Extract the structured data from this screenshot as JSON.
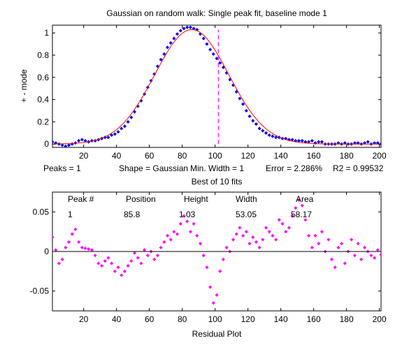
{
  "figure": {
    "title": "Gaussian on random walk: Single peak fit, baseline mode 1",
    "info_line": {
      "peaks": "Peaks = 1",
      "shape": "Shape = Gaussian",
      "min_width": "Min. Width = 1",
      "error": "Error = 2.286%",
      "r2": "R2 = 0.99532"
    },
    "best_of": "Best of 10 fits",
    "fit_table": {
      "headers": [
        "Peak #",
        "Position",
        "Height",
        "Width",
        "Area"
      ],
      "row": [
        "1",
        "85.8",
        "1.03",
        "53.05",
        "58.17"
      ]
    }
  },
  "chart_data": [
    {
      "type": "scatter",
      "title": "Gaussian on random walk: Single peak fit, baseline mode 1",
      "ylabel": "+ - mode",
      "xlabel": "",
      "xlim": [
        1,
        201
      ],
      "ylim": [
        -0.03,
        1.07
      ],
      "xticks": [
        20,
        40,
        60,
        80,
        100,
        120,
        140,
        160,
        180,
        200
      ],
      "yticks": [
        0,
        0.2,
        0.4,
        0.6,
        0.8,
        1
      ],
      "ytick_labels": [
        "0",
        "0.2",
        "0.4",
        "0.6",
        "0.8",
        "1"
      ],
      "grid": false,
      "series": [
        {
          "kind": "scatter",
          "color": "#0000ff",
          "x": [
            1,
            3,
            5,
            7,
            9,
            11,
            13,
            15,
            17,
            19,
            21,
            23,
            25,
            27,
            29,
            31,
            33,
            35,
            37,
            39,
            41,
            43,
            45,
            47,
            49,
            51,
            53,
            55,
            57,
            59,
            61,
            63,
            65,
            67,
            69,
            71,
            73,
            75,
            77,
            79,
            81,
            83,
            85,
            87,
            89,
            91,
            93,
            95,
            97,
            99,
            101,
            103,
            105,
            107,
            109,
            111,
            113,
            115,
            117,
            119,
            121,
            123,
            125,
            127,
            129,
            131,
            133,
            135,
            137,
            139,
            141,
            143,
            145,
            147,
            149,
            151,
            153,
            155,
            157,
            159,
            161,
            163,
            165,
            167,
            169,
            171,
            173,
            175,
            177,
            179,
            181,
            183,
            185,
            187,
            189,
            191,
            193,
            195,
            197,
            199,
            201
          ],
          "y": [
            0.02,
            0.01,
            0.0,
            -0.01,
            -0.02,
            -0.01,
            0.0,
            0.01,
            0.03,
            0.04,
            0.03,
            0.02,
            0.03,
            0.03,
            0.04,
            0.05,
            0.06,
            0.06,
            0.08,
            0.09,
            0.11,
            0.14,
            0.16,
            0.2,
            0.24,
            0.29,
            0.34,
            0.39,
            0.45,
            0.51,
            0.57,
            0.63,
            0.7,
            0.76,
            0.81,
            0.87,
            0.91,
            0.95,
            0.99,
            1.02,
            1.04,
            1.05,
            1.05,
            1.04,
            1.03,
            0.99,
            0.95,
            0.9,
            0.85,
            0.81,
            0.77,
            0.73,
            0.69,
            0.64,
            0.58,
            0.53,
            0.47,
            0.41,
            0.36,
            0.3,
            0.25,
            0.21,
            0.18,
            0.14,
            0.12,
            0.1,
            0.08,
            0.07,
            0.06,
            0.06,
            0.05,
            0.05,
            0.04,
            0.04,
            0.03,
            0.03,
            0.03,
            0.02,
            0.02,
            0.03,
            0.01,
            0.02,
            0.02,
            0.0,
            0.0,
            0.0,
            0.0,
            0.01,
            0.0,
            0.01,
            0.0,
            0.0,
            0.01,
            0.01,
            0.0,
            0.01,
            0.02,
            0.0,
            0.01,
            0.01,
            0.0
          ]
        },
        {
          "kind": "line",
          "color": "#ff0000",
          "function": "gaussian",
          "position": 85.8,
          "height": 1.03,
          "width": 53.05,
          "x_range": [
            1,
            201
          ]
        },
        {
          "kind": "vline",
          "color": "#ff00ff",
          "style": "dashed",
          "x": 102,
          "y_range": [
            0,
            1.03
          ]
        }
      ]
    },
    {
      "type": "scatter",
      "title": "",
      "xlabel": "Residual Plot",
      "ylabel": "",
      "xlim": [
        1,
        201
      ],
      "ylim": [
        -0.075,
        0.075
      ],
      "xticks": [
        20,
        40,
        60,
        80,
        100,
        120,
        140,
        160,
        180,
        200
      ],
      "yticks": [
        -0.05,
        0,
        0.05
      ],
      "ytick_labels": [
        "-0.05",
        "0",
        "0.05"
      ],
      "grid": false,
      "series": [
        {
          "kind": "scatter",
          "color": "#ff00ff",
          "x": [
            1,
            3,
            5,
            7,
            9,
            11,
            13,
            15,
            17,
            19,
            21,
            23,
            25,
            27,
            29,
            31,
            33,
            35,
            37,
            39,
            41,
            43,
            45,
            47,
            49,
            51,
            53,
            55,
            57,
            59,
            61,
            63,
            65,
            67,
            69,
            71,
            73,
            75,
            77,
            79,
            81,
            83,
            85,
            87,
            89,
            91,
            93,
            95,
            97,
            99,
            101,
            103,
            105,
            107,
            109,
            111,
            113,
            115,
            117,
            119,
            121,
            123,
            125,
            127,
            129,
            131,
            133,
            135,
            137,
            139,
            141,
            143,
            145,
            147,
            149,
            151,
            153,
            155,
            157,
            159,
            161,
            163,
            165,
            167,
            169,
            171,
            173,
            175,
            177,
            179,
            181,
            183,
            185,
            187,
            189,
            191,
            193,
            195,
            197,
            199,
            201
          ],
          "y": [
            0.018,
            0.002,
            -0.015,
            -0.01,
            0.005,
            0.012,
            0.022,
            0.028,
            0.012,
            0.005,
            0.004,
            0.003,
            0.002,
            -0.005,
            -0.015,
            -0.018,
            -0.012,
            -0.008,
            -0.015,
            -0.025,
            -0.02,
            -0.03,
            -0.025,
            -0.018,
            -0.012,
            -0.002,
            -0.008,
            -0.015,
            0.002,
            -0.005,
            0.0,
            -0.01,
            -0.005,
            0.005,
            0.012,
            0.02,
            0.015,
            0.025,
            0.022,
            0.035,
            0.045,
            0.038,
            0.025,
            0.035,
            0.02,
            0.01,
            -0.005,
            -0.02,
            -0.045,
            -0.065,
            -0.055,
            -0.025,
            -0.01,
            0.005,
            0.0,
            0.015,
            0.022,
            0.03,
            0.02,
            0.025,
            0.01,
            0.018,
            0.012,
            0.005,
            0.015,
            0.03,
            0.025,
            0.02,
            0.015,
            0.04,
            0.035,
            0.025,
            0.03,
            0.045,
            0.055,
            0.065,
            0.058,
            0.04,
            0.02,
            0.005,
            0.02,
            0.01,
            0.025,
            0.0,
            0.015,
            -0.01,
            -0.02,
            0.005,
            0.01,
            -0.015,
            0.0,
            0.015,
            -0.005,
            0.01,
            -0.01,
            0.005,
            0.0,
            -0.005,
            -0.008,
            0.002,
            -0.004
          ]
        }
      ]
    }
  ]
}
